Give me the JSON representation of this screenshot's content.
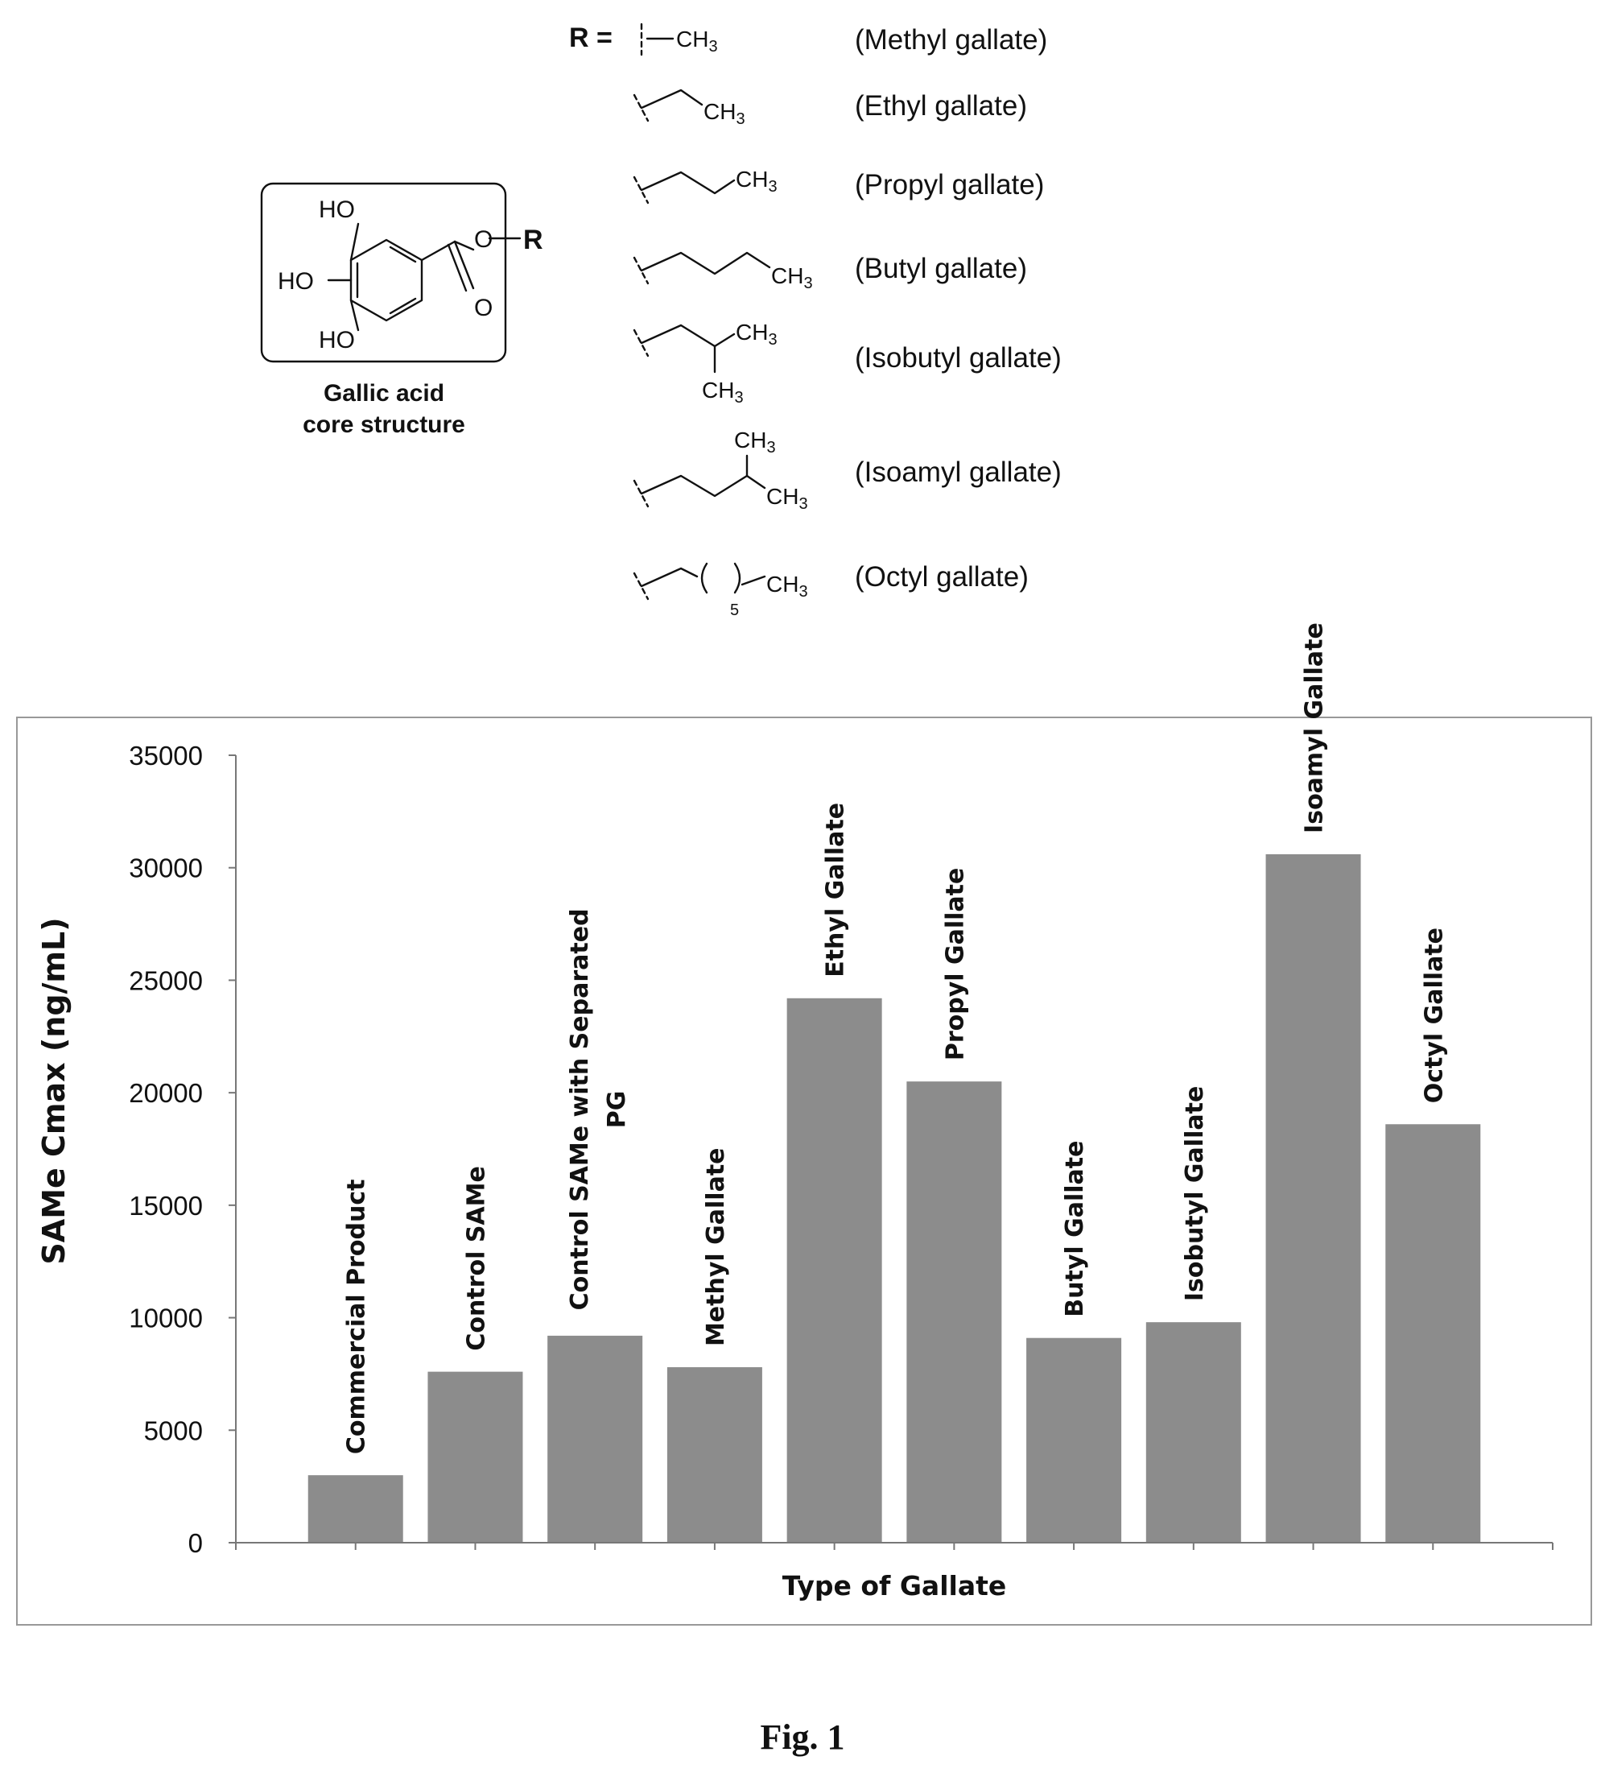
{
  "scheme": {
    "r_equals": "R =",
    "r_label": "R",
    "core_title_line1": "Gallic acid",
    "core_title_line2": "core structure",
    "atoms": {
      "ho_top": "HO",
      "ho_mid": "HO",
      "ho_bot": "HO",
      "ester_o": "O",
      "carbonyl_o": "O"
    },
    "ch3": "CH",
    "ch3_sub": "3",
    "octyl_repeat_subscript": "5",
    "substituents": [
      "(Methyl gallate)",
      "(Ethyl gallate)",
      "(Propyl gallate)",
      "(Butyl gallate)",
      "(Isobutyl gallate)",
      "(Isoamyl gallate)",
      "(Octyl gallate)"
    ]
  },
  "chart_data": {
    "type": "bar",
    "title": "",
    "xlabel": "Type of Gallate",
    "ylabel": "SAMe Cmax (ng/mL)",
    "ylim": [
      0,
      35000
    ],
    "yticks": [
      "0",
      "5000",
      "10000",
      "15000",
      "20000",
      "25000",
      "30000",
      "35000"
    ],
    "categories": [
      [
        "Commercial Product"
      ],
      [
        "Control SAMe"
      ],
      [
        "Control SAMe with Separated",
        "PG"
      ],
      [
        "Methyl Gallate"
      ],
      [
        "Ethyl Gallate"
      ],
      [
        "Propyl Gallate"
      ],
      [
        "Butyl Gallate"
      ],
      [
        "Isobutyl Gallate"
      ],
      [
        "Isoamyl Gallate"
      ],
      [
        "Octyl Gallate"
      ]
    ],
    "values": [
      3000,
      7600,
      9200,
      7800,
      24200,
      20500,
      9100,
      9800,
      30600,
      18600
    ],
    "colors": {
      "bar": "#8c8c8c",
      "axis": "#777777",
      "frame": "#999999"
    },
    "grid": false,
    "legend": "none"
  },
  "caption": "Fig. 1"
}
